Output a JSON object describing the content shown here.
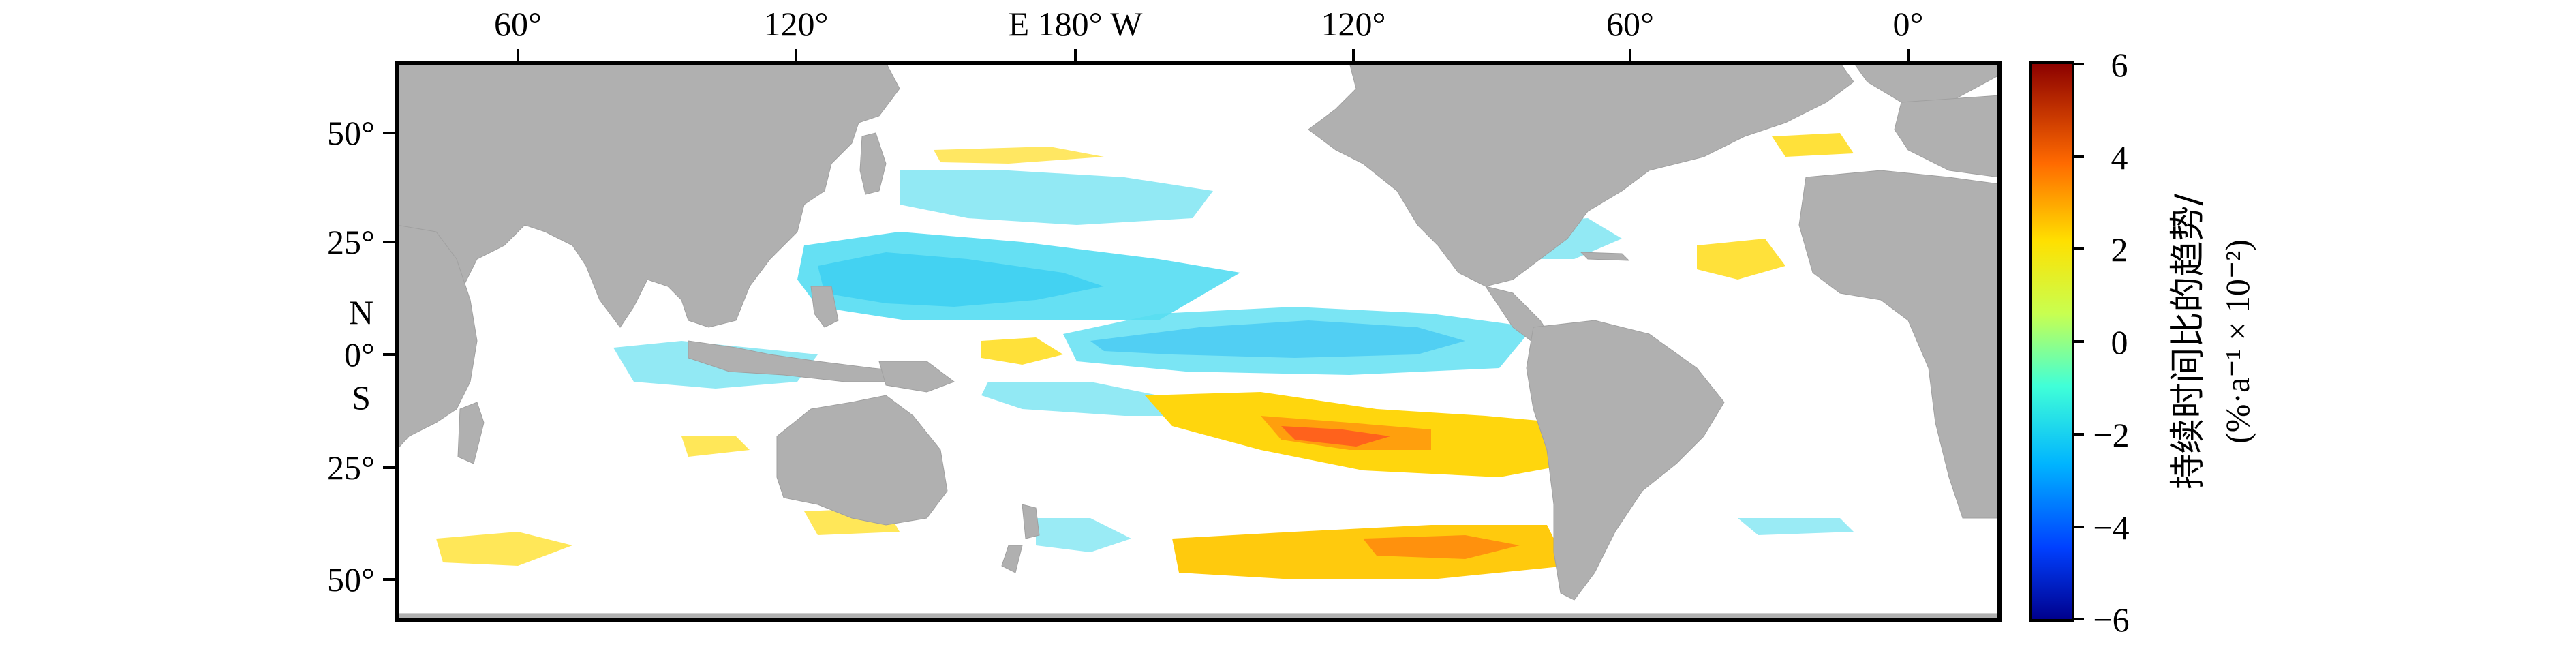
{
  "map": {
    "top_axis_labels": [
      "60°",
      "120°",
      "E 180° W",
      "120°",
      "60°",
      "0°"
    ],
    "left_axis_labels": [
      "50°",
      "25°",
      "N",
      "0°",
      "S",
      "25°",
      "50°"
    ],
    "colorbar": {
      "ticks": [
        "6",
        "4",
        "2",
        "0",
        "−2",
        "−4",
        "−6"
      ],
      "title": "持续时间比的趋势/",
      "units": "(%·a⁻¹ × 10⁻²)"
    },
    "colors": {
      "land": "#b0b0b0",
      "ocean": "#ffffff",
      "frame": "#000000"
    },
    "colorscale": [
      "#00008b",
      "#0050ff",
      "#00c8ff",
      "#7fffd0",
      "#e8ff40",
      "#ffc000",
      "#ff5000",
      "#8b0000"
    ],
    "value_range": [
      -6,
      6
    ]
  }
}
